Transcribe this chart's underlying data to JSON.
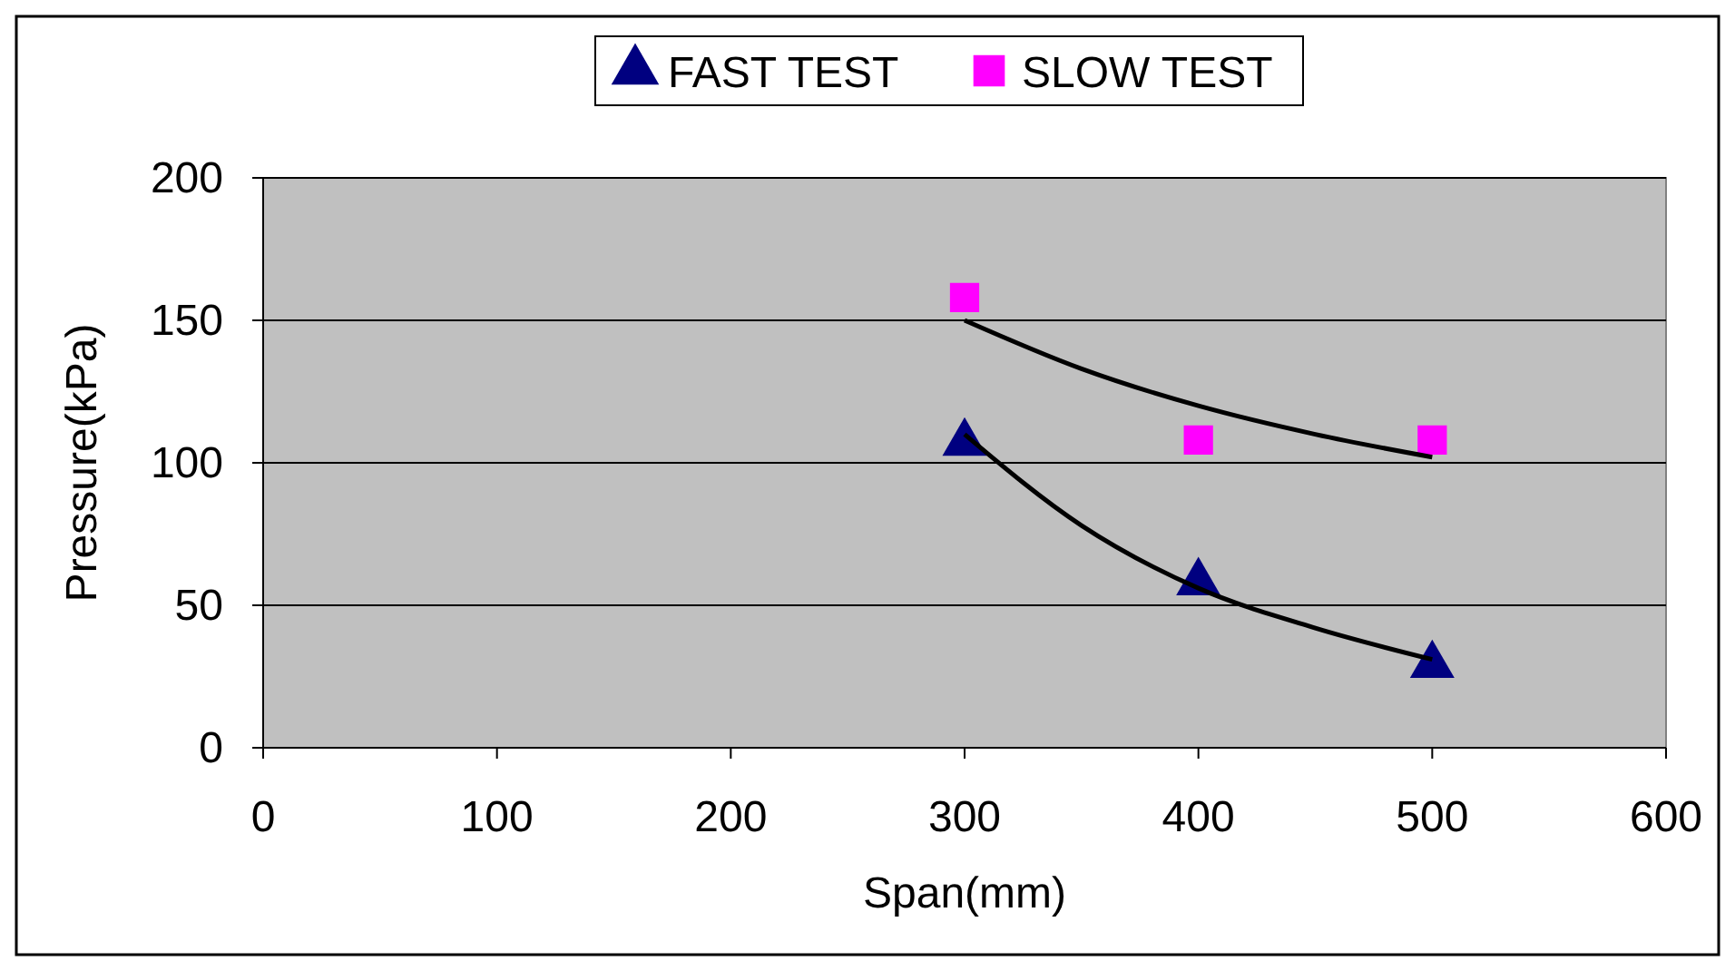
{
  "chart_data": {
    "type": "scatter",
    "xlabel": "Span(mm)",
    "ylabel": "Pressure(kPa)",
    "xlim": [
      0,
      600
    ],
    "xticks": [
      0,
      100,
      200,
      300,
      400,
      500,
      600
    ],
    "ylim": [
      0,
      200
    ],
    "yticks": [
      0,
      50,
      100,
      150,
      200
    ],
    "grid": "y",
    "legend": "top",
    "series": [
      {
        "name": "FAST TEST",
        "color": "#000080",
        "marker": "triangle",
        "x": [
          300,
          400,
          500
        ],
        "values": [
          107,
          58,
          29
        ]
      },
      {
        "name": "SLOW TEST",
        "color": "#ff00ff",
        "marker": "square",
        "x": [
          300,
          400,
          500
        ],
        "values": [
          158,
          108,
          108
        ]
      },
      {
        "type": "line",
        "color": "#000000",
        "marker": "none",
        "line_style": "solid",
        "x": [
          300,
          350,
          400,
          450,
          500
        ],
        "values": [
          110,
          78,
          56,
          42,
          31
        ]
      },
      {
        "type": "line",
        "color": "#000000",
        "marker": "none",
        "line_style": "solid",
        "x": [
          300,
          350,
          400,
          450,
          500
        ],
        "values": [
          150,
          133,
          120,
          110,
          102
        ]
      }
    ]
  }
}
